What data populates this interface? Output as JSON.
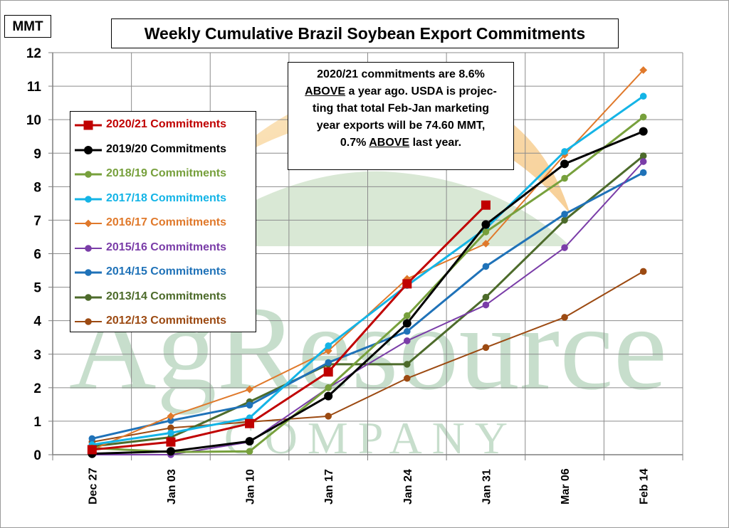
{
  "chart_data": {
    "type": "line",
    "title": "Weekly Cumulative Brazil Soybean Export Commitments",
    "unit_label": "MMT",
    "categories": [
      "Dec 27",
      "Jan 03",
      "Jan 10",
      "Jan 17",
      "Jan 24",
      "Jan 31",
      "Mar 06",
      "Feb 14"
    ],
    "ylim": [
      0,
      12
    ],
    "yticks": [
      0,
      1,
      2,
      3,
      4,
      5,
      6,
      7,
      8,
      9,
      10,
      11,
      12
    ],
    "grid": true,
    "legend_position": "left",
    "watermark": {
      "main": "AgResource",
      "sub": "COMPANY"
    },
    "annotation": {
      "lines": [
        [
          {
            "t": "2020/21 commitments are 8.6%",
            "u": false
          }
        ],
        [
          {
            "t": "ABOVE",
            "u": true
          },
          {
            "t": " a year ago. USDA is projec-",
            "u": false
          }
        ],
        [
          {
            "t": "ting that total Feb-Jan marketing",
            "u": false
          }
        ],
        [
          {
            "t": "year exports will be 74.60 MMT,",
            "u": false
          }
        ],
        [
          {
            "t": "0.7% ",
            "u": false
          },
          {
            "t": "ABOVE",
            "u": true
          },
          {
            "t": " last year.",
            "u": false
          }
        ]
      ]
    },
    "series": [
      {
        "name": "2020/21 Commitments",
        "color": "#c00000",
        "marker": "square",
        "width": 3,
        "values": [
          0.15,
          0.38,
          0.93,
          2.47,
          5.1,
          7.45,
          null,
          null
        ]
      },
      {
        "name": "2019/20 Commitments",
        "color": "#000000",
        "marker": "circle",
        "width": 3,
        "values": [
          0.03,
          0.1,
          0.4,
          1.75,
          3.92,
          6.87,
          8.68,
          9.65
        ]
      },
      {
        "name": "2018/19 Commitments",
        "color": "#77a03c",
        "marker": "circle",
        "width": 3,
        "values": [
          0.2,
          0.08,
          0.1,
          2.0,
          4.15,
          6.65,
          8.25,
          10.08
        ]
      },
      {
        "name": "2017/18 Commitments",
        "color": "#14b4e6",
        "marker": "circle",
        "width": 3,
        "values": [
          0.3,
          0.65,
          1.1,
          3.25,
          5.05,
          6.75,
          9.05,
          10.7
        ]
      },
      {
        "name": "2016/17 Commitments",
        "color": "#e0792b",
        "marker": "diamond",
        "width": 2,
        "values": [
          0.15,
          1.15,
          1.95,
          3.1,
          5.25,
          6.3,
          8.95,
          11.48
        ]
      },
      {
        "name": "2015/16 Commitments",
        "color": "#7a3da8",
        "marker": "circle",
        "width": 2,
        "values": [
          0.0,
          0.0,
          0.38,
          2.0,
          3.4,
          4.47,
          6.18,
          8.75
        ]
      },
      {
        "name": "2014/15 Commitments",
        "color": "#1f72b8",
        "marker": "circle",
        "width": 3,
        "values": [
          0.48,
          1.02,
          1.48,
          2.75,
          3.68,
          5.62,
          7.18,
          8.42
        ]
      },
      {
        "name": "2013/14 Commitments",
        "color": "#4d6b2b",
        "marker": "circle",
        "width": 3,
        "values": [
          0.25,
          0.52,
          1.58,
          2.7,
          2.7,
          4.7,
          7.0,
          8.92
        ]
      },
      {
        "name": "2012/13 Commitments",
        "color": "#9c4a12",
        "marker": "circle",
        "width": 2,
        "values": [
          0.38,
          0.8,
          0.98,
          1.15,
          2.28,
          3.2,
          4.1,
          5.47
        ]
      }
    ]
  }
}
